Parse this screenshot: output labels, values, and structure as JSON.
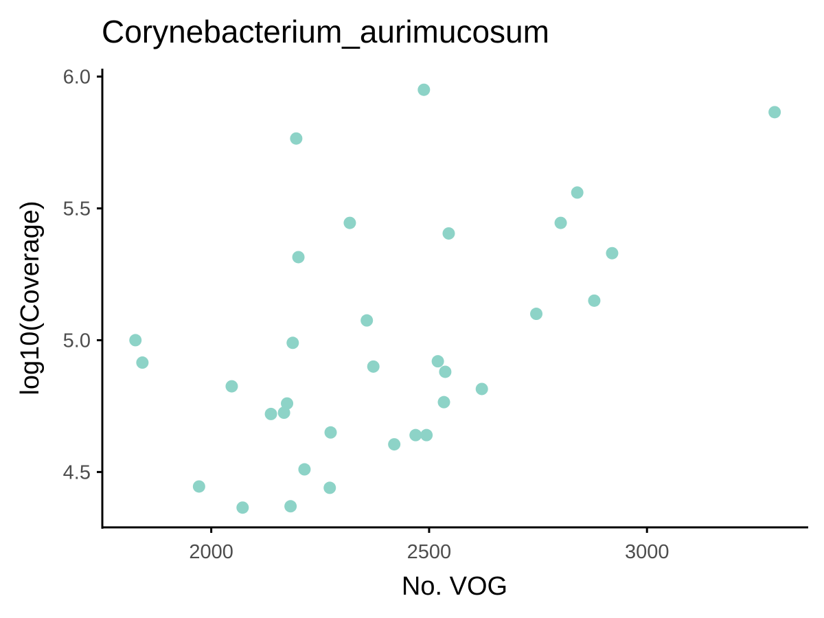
{
  "chart_data": {
    "type": "scatter",
    "title": "Corynebacterium_aurimucosum",
    "xlabel": "No. VOG",
    "ylabel": "log10(Coverage)",
    "xlim": [
      1750,
      3370
    ],
    "ylim": [
      4.29,
      6.03
    ],
    "xticks": [
      2000,
      2500,
      3000
    ],
    "yticks": [
      4.5,
      5.0,
      5.5,
      6.0
    ],
    "xtick_labels": [
      "2000",
      "2500",
      "3000"
    ],
    "ytick_labels": [
      "4.5",
      "5.0",
      "5.5",
      "6.0"
    ],
    "grid": false,
    "legend": "none",
    "point_color": "#8dd3c7",
    "points": [
      {
        "x": 1826,
        "y": 5.0
      },
      {
        "x": 1842,
        "y": 4.915
      },
      {
        "x": 1972,
        "y": 4.445
      },
      {
        "x": 2047,
        "y": 4.825
      },
      {
        "x": 2072,
        "y": 4.365
      },
      {
        "x": 2137,
        "y": 4.72
      },
      {
        "x": 2167,
        "y": 4.725
      },
      {
        "x": 2174,
        "y": 4.76
      },
      {
        "x": 2182,
        "y": 4.37
      },
      {
        "x": 2187,
        "y": 4.99
      },
      {
        "x": 2195,
        "y": 5.765
      },
      {
        "x": 2200,
        "y": 5.315
      },
      {
        "x": 2214,
        "y": 4.51
      },
      {
        "x": 2272,
        "y": 4.44
      },
      {
        "x": 2274,
        "y": 4.65
      },
      {
        "x": 2318,
        "y": 5.445
      },
      {
        "x": 2357,
        "y": 5.075
      },
      {
        "x": 2372,
        "y": 4.9
      },
      {
        "x": 2420,
        "y": 4.605
      },
      {
        "x": 2469,
        "y": 4.64
      },
      {
        "x": 2488,
        "y": 5.95
      },
      {
        "x": 2494,
        "y": 4.64
      },
      {
        "x": 2520,
        "y": 4.92
      },
      {
        "x": 2534,
        "y": 4.765
      },
      {
        "x": 2537,
        "y": 4.88
      },
      {
        "x": 2545,
        "y": 5.405
      },
      {
        "x": 2621,
        "y": 4.815
      },
      {
        "x": 2746,
        "y": 5.1
      },
      {
        "x": 2802,
        "y": 5.445
      },
      {
        "x": 2840,
        "y": 5.56
      },
      {
        "x": 2879,
        "y": 5.15
      },
      {
        "x": 2920,
        "y": 5.33
      },
      {
        "x": 3293,
        "y": 5.865
      }
    ]
  }
}
